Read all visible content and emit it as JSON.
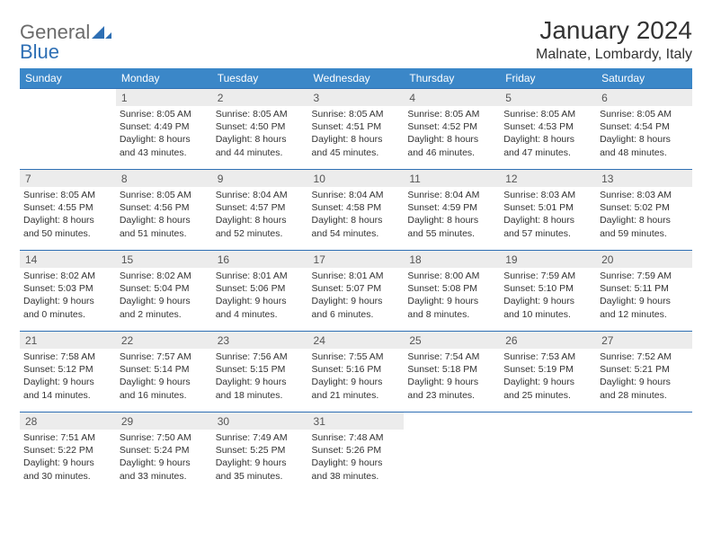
{
  "logo": {
    "part1": "General",
    "part2": "Blue"
  },
  "title": "January 2024",
  "location": "Malnate, Lombardy, Italy",
  "colors": {
    "header_bg": "#3b87c8",
    "border": "#2e6fb4",
    "daynum_bg": "#ececec",
    "logo_gray": "#6b6b6b",
    "logo_blue": "#2e6fb4"
  },
  "weekdays": [
    "Sunday",
    "Monday",
    "Tuesday",
    "Wednesday",
    "Thursday",
    "Friday",
    "Saturday"
  ],
  "weeks": [
    [
      {
        "n": "",
        "sr": "",
        "ss": "",
        "dl1": "",
        "dl2": ""
      },
      {
        "n": "1",
        "sr": "Sunrise: 8:05 AM",
        "ss": "Sunset: 4:49 PM",
        "dl1": "Daylight: 8 hours",
        "dl2": "and 43 minutes."
      },
      {
        "n": "2",
        "sr": "Sunrise: 8:05 AM",
        "ss": "Sunset: 4:50 PM",
        "dl1": "Daylight: 8 hours",
        "dl2": "and 44 minutes."
      },
      {
        "n": "3",
        "sr": "Sunrise: 8:05 AM",
        "ss": "Sunset: 4:51 PM",
        "dl1": "Daylight: 8 hours",
        "dl2": "and 45 minutes."
      },
      {
        "n": "4",
        "sr": "Sunrise: 8:05 AM",
        "ss": "Sunset: 4:52 PM",
        "dl1": "Daylight: 8 hours",
        "dl2": "and 46 minutes."
      },
      {
        "n": "5",
        "sr": "Sunrise: 8:05 AM",
        "ss": "Sunset: 4:53 PM",
        "dl1": "Daylight: 8 hours",
        "dl2": "and 47 minutes."
      },
      {
        "n": "6",
        "sr": "Sunrise: 8:05 AM",
        "ss": "Sunset: 4:54 PM",
        "dl1": "Daylight: 8 hours",
        "dl2": "and 48 minutes."
      }
    ],
    [
      {
        "n": "7",
        "sr": "Sunrise: 8:05 AM",
        "ss": "Sunset: 4:55 PM",
        "dl1": "Daylight: 8 hours",
        "dl2": "and 50 minutes."
      },
      {
        "n": "8",
        "sr": "Sunrise: 8:05 AM",
        "ss": "Sunset: 4:56 PM",
        "dl1": "Daylight: 8 hours",
        "dl2": "and 51 minutes."
      },
      {
        "n": "9",
        "sr": "Sunrise: 8:04 AM",
        "ss": "Sunset: 4:57 PM",
        "dl1": "Daylight: 8 hours",
        "dl2": "and 52 minutes."
      },
      {
        "n": "10",
        "sr": "Sunrise: 8:04 AM",
        "ss": "Sunset: 4:58 PM",
        "dl1": "Daylight: 8 hours",
        "dl2": "and 54 minutes."
      },
      {
        "n": "11",
        "sr": "Sunrise: 8:04 AM",
        "ss": "Sunset: 4:59 PM",
        "dl1": "Daylight: 8 hours",
        "dl2": "and 55 minutes."
      },
      {
        "n": "12",
        "sr": "Sunrise: 8:03 AM",
        "ss": "Sunset: 5:01 PM",
        "dl1": "Daylight: 8 hours",
        "dl2": "and 57 minutes."
      },
      {
        "n": "13",
        "sr": "Sunrise: 8:03 AM",
        "ss": "Sunset: 5:02 PM",
        "dl1": "Daylight: 8 hours",
        "dl2": "and 59 minutes."
      }
    ],
    [
      {
        "n": "14",
        "sr": "Sunrise: 8:02 AM",
        "ss": "Sunset: 5:03 PM",
        "dl1": "Daylight: 9 hours",
        "dl2": "and 0 minutes."
      },
      {
        "n": "15",
        "sr": "Sunrise: 8:02 AM",
        "ss": "Sunset: 5:04 PM",
        "dl1": "Daylight: 9 hours",
        "dl2": "and 2 minutes."
      },
      {
        "n": "16",
        "sr": "Sunrise: 8:01 AM",
        "ss": "Sunset: 5:06 PM",
        "dl1": "Daylight: 9 hours",
        "dl2": "and 4 minutes."
      },
      {
        "n": "17",
        "sr": "Sunrise: 8:01 AM",
        "ss": "Sunset: 5:07 PM",
        "dl1": "Daylight: 9 hours",
        "dl2": "and 6 minutes."
      },
      {
        "n": "18",
        "sr": "Sunrise: 8:00 AM",
        "ss": "Sunset: 5:08 PM",
        "dl1": "Daylight: 9 hours",
        "dl2": "and 8 minutes."
      },
      {
        "n": "19",
        "sr": "Sunrise: 7:59 AM",
        "ss": "Sunset: 5:10 PM",
        "dl1": "Daylight: 9 hours",
        "dl2": "and 10 minutes."
      },
      {
        "n": "20",
        "sr": "Sunrise: 7:59 AM",
        "ss": "Sunset: 5:11 PM",
        "dl1": "Daylight: 9 hours",
        "dl2": "and 12 minutes."
      }
    ],
    [
      {
        "n": "21",
        "sr": "Sunrise: 7:58 AM",
        "ss": "Sunset: 5:12 PM",
        "dl1": "Daylight: 9 hours",
        "dl2": "and 14 minutes."
      },
      {
        "n": "22",
        "sr": "Sunrise: 7:57 AM",
        "ss": "Sunset: 5:14 PM",
        "dl1": "Daylight: 9 hours",
        "dl2": "and 16 minutes."
      },
      {
        "n": "23",
        "sr": "Sunrise: 7:56 AM",
        "ss": "Sunset: 5:15 PM",
        "dl1": "Daylight: 9 hours",
        "dl2": "and 18 minutes."
      },
      {
        "n": "24",
        "sr": "Sunrise: 7:55 AM",
        "ss": "Sunset: 5:16 PM",
        "dl1": "Daylight: 9 hours",
        "dl2": "and 21 minutes."
      },
      {
        "n": "25",
        "sr": "Sunrise: 7:54 AM",
        "ss": "Sunset: 5:18 PM",
        "dl1": "Daylight: 9 hours",
        "dl2": "and 23 minutes."
      },
      {
        "n": "26",
        "sr": "Sunrise: 7:53 AM",
        "ss": "Sunset: 5:19 PM",
        "dl1": "Daylight: 9 hours",
        "dl2": "and 25 minutes."
      },
      {
        "n": "27",
        "sr": "Sunrise: 7:52 AM",
        "ss": "Sunset: 5:21 PM",
        "dl1": "Daylight: 9 hours",
        "dl2": "and 28 minutes."
      }
    ],
    [
      {
        "n": "28",
        "sr": "Sunrise: 7:51 AM",
        "ss": "Sunset: 5:22 PM",
        "dl1": "Daylight: 9 hours",
        "dl2": "and 30 minutes."
      },
      {
        "n": "29",
        "sr": "Sunrise: 7:50 AM",
        "ss": "Sunset: 5:24 PM",
        "dl1": "Daylight: 9 hours",
        "dl2": "and 33 minutes."
      },
      {
        "n": "30",
        "sr": "Sunrise: 7:49 AM",
        "ss": "Sunset: 5:25 PM",
        "dl1": "Daylight: 9 hours",
        "dl2": "and 35 minutes."
      },
      {
        "n": "31",
        "sr": "Sunrise: 7:48 AM",
        "ss": "Sunset: 5:26 PM",
        "dl1": "Daylight: 9 hours",
        "dl2": "and 38 minutes."
      },
      {
        "n": "",
        "sr": "",
        "ss": "",
        "dl1": "",
        "dl2": ""
      },
      {
        "n": "",
        "sr": "",
        "ss": "",
        "dl1": "",
        "dl2": ""
      },
      {
        "n": "",
        "sr": "",
        "ss": "",
        "dl1": "",
        "dl2": ""
      }
    ]
  ]
}
